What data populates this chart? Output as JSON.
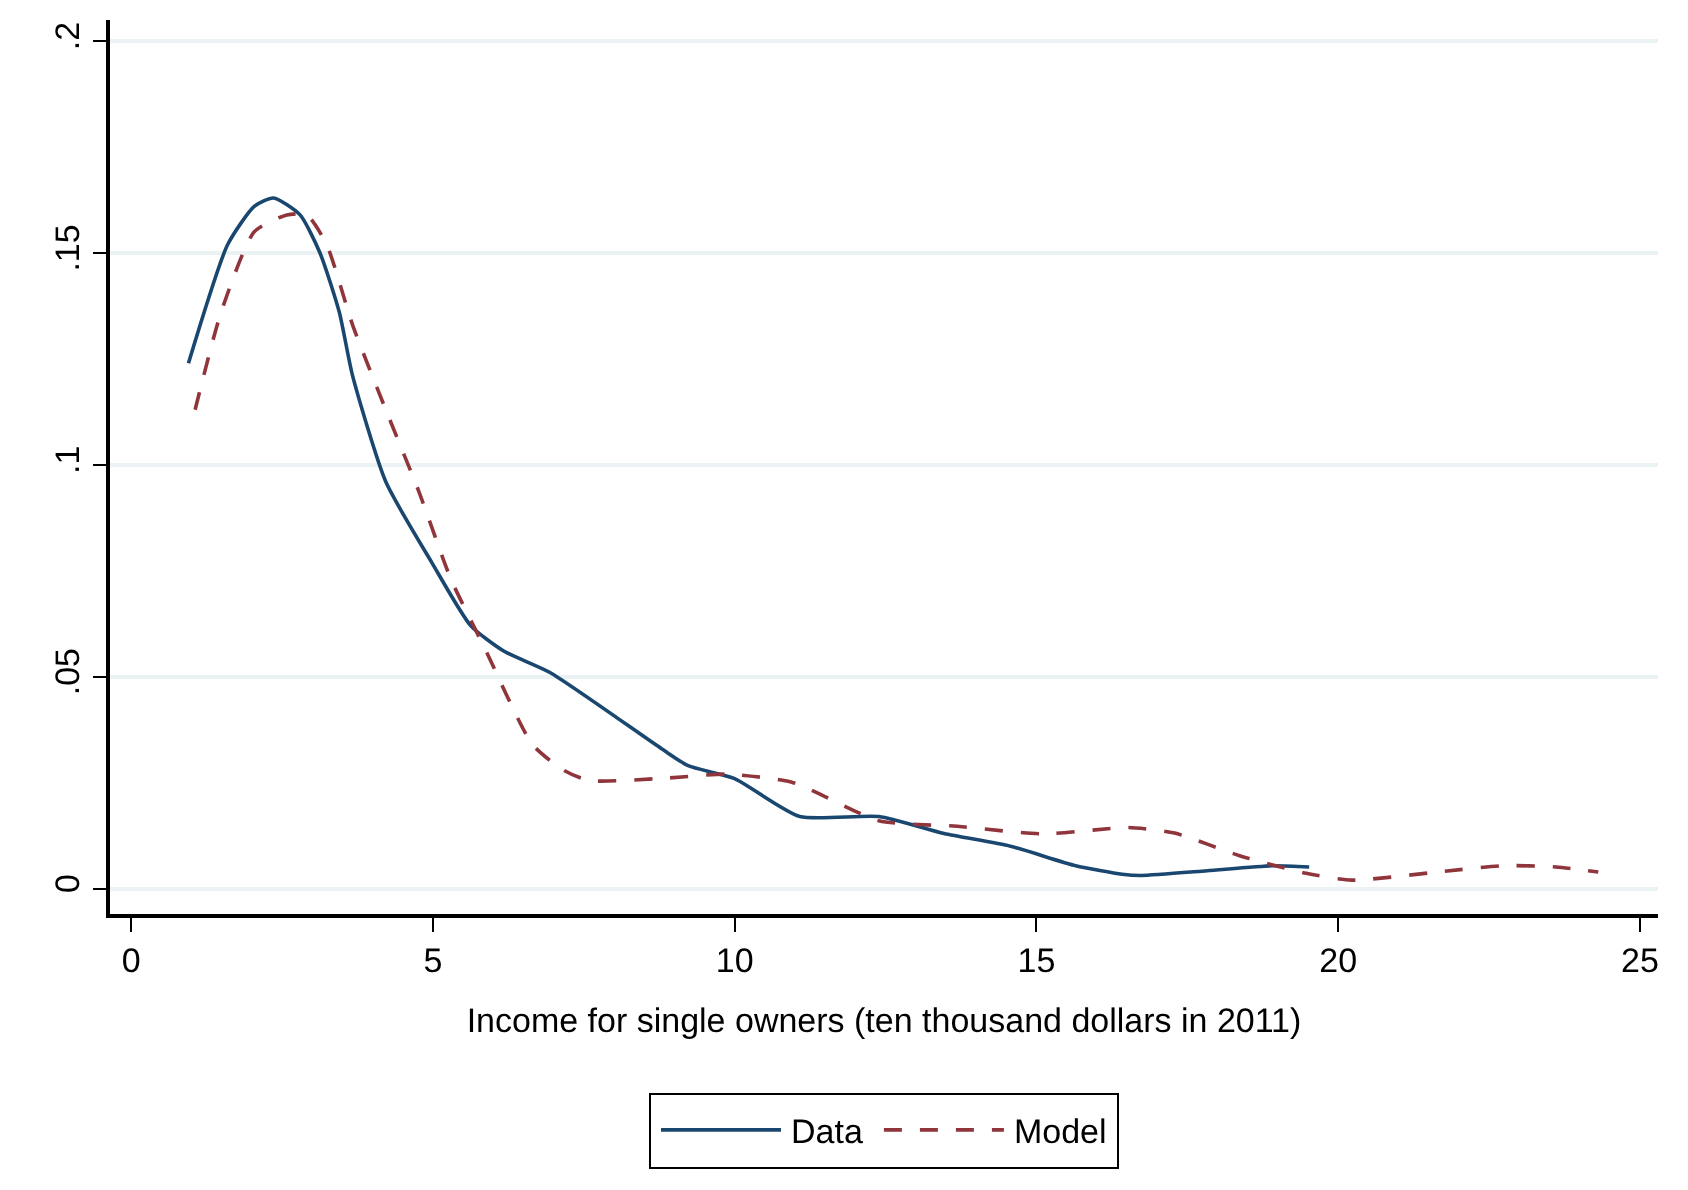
{
  "chart_data": {
    "type": "line",
    "xlabel": "Income for single owners (ten thousand dollars in 2011)",
    "xlim": [
      -0.35,
      25.3
    ],
    "xticks": [
      0,
      5,
      10,
      15,
      20,
      25
    ],
    "ylim": [
      -0.006,
      0.205
    ],
    "yticks": [
      {
        "value": 0,
        "label": "0"
      },
      {
        "value": 0.05,
        "label": ".05"
      },
      {
        "value": 0.1,
        "label": ".1"
      },
      {
        "value": 0.15,
        "label": ".15"
      },
      {
        "value": 0.2,
        "label": ".2"
      }
    ],
    "grid": "y",
    "legend": "bottom",
    "series": [
      {
        "name": "Data",
        "color": "#1a476f",
        "line_style": "solid",
        "x": [
          0.95,
          1.6,
          2.04,
          2.36,
          2.8,
          3.13,
          3.45,
          3.67,
          4.22,
          4.98,
          5.63,
          6.18,
          6.94,
          8.79,
          9.23,
          9.99,
          11.08,
          12.39,
          13.47,
          14.57,
          15.65,
          16.42,
          16.74,
          17.83,
          18.92,
          19.52
        ],
        "values": [
          0.124,
          0.152,
          0.161,
          0.163,
          0.159,
          0.15,
          0.136,
          0.121,
          0.096,
          0.077,
          0.062,
          0.056,
          0.051,
          0.033,
          0.029,
          0.026,
          0.017,
          0.017,
          0.013,
          0.01,
          0.0054,
          0.0034,
          0.0031,
          0.0042,
          0.0054,
          0.0051
        ]
      },
      {
        "name": "Model",
        "color": "#90353b",
        "line_style": "dashed",
        "x": [
          1.06,
          1.49,
          2.04,
          2.58,
          2.91,
          3.24,
          3.67,
          4.22,
          4.76,
          5.3,
          5.85,
          6.65,
          7.16,
          7.59,
          8.79,
          9.88,
          10.97,
          12.39,
          13.69,
          15.11,
          16.52,
          17.29,
          18.38,
          19.47,
          20.23,
          21.64,
          22.73,
          23.61,
          24.31
        ],
        "values": [
          0.113,
          0.136,
          0.155,
          0.159,
          0.159,
          0.152,
          0.133,
          0.113,
          0.094,
          0.073,
          0.057,
          0.034,
          0.028,
          0.0255,
          0.026,
          0.027,
          0.025,
          0.016,
          0.0147,
          0.0129,
          0.0144,
          0.0131,
          0.0077,
          0.0036,
          0.002,
          0.0039,
          0.0054,
          0.0051,
          0.0039
        ]
      }
    ]
  }
}
